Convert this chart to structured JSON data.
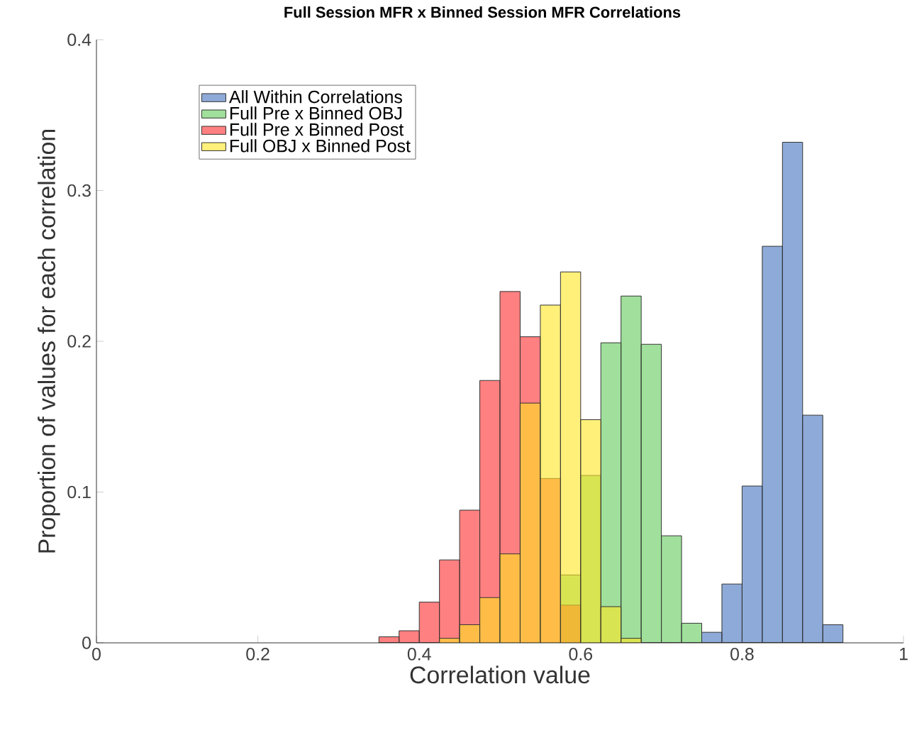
{
  "chart_data": {
    "type": "histogram",
    "title": "Full Session MFR x Binned Session MFR Correlations",
    "xlabel": "Correlation value",
    "ylabel": "Proportion of values for each correlation",
    "bins": [
      0.35,
      0.375,
      0.4,
      0.425,
      0.45,
      0.475,
      0.5,
      0.525,
      0.55,
      0.575,
      0.6,
      0.625,
      0.65,
      0.675,
      0.7,
      0.725,
      0.75,
      0.775,
      0.8,
      0.825,
      0.85,
      0.875,
      0.9,
      0.925
    ],
    "series": [
      {
        "name": "All Within Correlations",
        "color": "#8eaad8",
        "values": [
          0,
          0,
          0,
          0,
          0,
          0,
          0,
          0,
          0,
          0,
          0,
          0,
          0,
          0,
          0,
          0,
          0.007,
          0.039,
          0.104,
          0.263,
          0.332,
          0.151,
          0.012
        ]
      },
      {
        "name": "Full Pre x Binned OBJ",
        "color": "#a0e09c",
        "values": [
          0,
          0,
          0,
          0,
          0,
          0,
          0,
          null,
          null,
          0.045,
          0.111,
          0.199,
          0.23,
          0.198,
          0.071,
          0.013,
          0,
          0,
          0,
          0,
          0,
          0,
          0
        ]
      },
      {
        "name": "Full Pre x Binned Post",
        "color": "#ff8080",
        "values": [
          0.004,
          0.008,
          0.027,
          0.055,
          0.088,
          0.174,
          0.233,
          0.203,
          0.109,
          0.025,
          null,
          0,
          0,
          0,
          0,
          0,
          0,
          0,
          0,
          0,
          0,
          0,
          0
        ]
      },
      {
        "name": "Full OBJ x Binned Post",
        "color": "#fff07a",
        "values": [
          0,
          0,
          0,
          0.003,
          0.012,
          0.03,
          0.059,
          0.159,
          0.224,
          0.246,
          0.148,
          0.024,
          0.003,
          0,
          0,
          0,
          0,
          0,
          0,
          0,
          0,
          0,
          0
        ]
      }
    ],
    "xlim": [
      0,
      1
    ],
    "ylim": [
      0,
      0.4
    ],
    "xticks": [
      0,
      0.2,
      0.4,
      0.6,
      0.8,
      1
    ],
    "yticks": [
      0,
      0.1,
      0.2,
      0.3,
      0.4
    ],
    "legend": "top left"
  }
}
